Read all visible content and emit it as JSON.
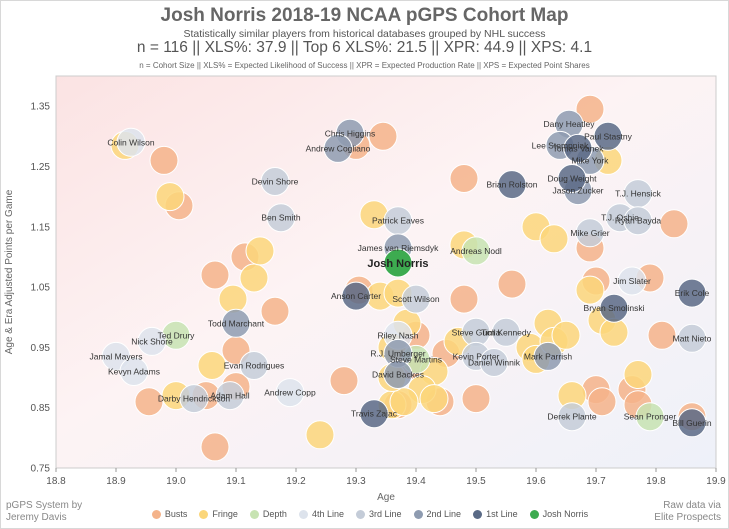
{
  "chart_data": {
    "type": "scatter",
    "title": "Josh Norris 2018-19 NCAA pGPS Cohort Map",
    "subtitle": "Statistically similar players from historical databases grouped by NHL success",
    "stats_line": "n = 116  ||  XLS%: 37.9  ||  Top 6 XLS%: 21.5  ||  XPR: 44.9  ||  XPS: 4.1",
    "definitions": "n = Cohort Size || XLS% = Expected Likelihood of Success || XPR = Expected Production Rate || XPS = Expected Point Shares",
    "xlabel": "Age",
    "ylabel": "Age & Era Adjusted Points per Game",
    "xlim": [
      18.8,
      19.9
    ],
    "ylim": [
      0.75,
      1.4
    ],
    "xticks": [
      "18.8",
      "18.9",
      "19.0",
      "19.1",
      "19.2",
      "19.3",
      "19.4",
      "19.5",
      "19.6",
      "19.7",
      "19.8",
      "19.9"
    ],
    "yticks": [
      "0.75",
      "0.85",
      "0.95",
      "1.05",
      "1.15",
      "1.25",
      "1.35"
    ],
    "grid": false,
    "legend_position": "bottom",
    "categories": [
      {
        "name": "Busts",
        "color": "#f4b38a"
      },
      {
        "name": "Fringe",
        "color": "#fbd67a"
      },
      {
        "name": "Depth",
        "color": "#c7e3b2"
      },
      {
        "name": "4th Line",
        "color": "#dde3ec"
      },
      {
        "name": "3rd Line",
        "color": "#c4ccd8"
      },
      {
        "name": "2nd Line",
        "color": "#8e9bb0"
      },
      {
        "name": "1st Line",
        "color": "#5a6a86"
      },
      {
        "name": "Josh Norris",
        "color": "#3dab50"
      }
    ],
    "subject": {
      "name": "Josh Norris",
      "x": 19.37,
      "y": 1.09
    },
    "points": [
      {
        "x": 18.915,
        "y": 1.285,
        "c": 1
      },
      {
        "x": 18.98,
        "y": 1.26,
        "c": 0
      },
      {
        "x": 18.99,
        "y": 1.2,
        "c": 1
      },
      {
        "x": 19.005,
        "y": 1.185,
        "c": 0
      },
      {
        "x": 19.065,
        "y": 1.07,
        "c": 0
      },
      {
        "x": 19.095,
        "y": 1.03,
        "c": 1
      },
      {
        "x": 19.115,
        "y": 1.1,
        "c": 0
      },
      {
        "x": 19.13,
        "y": 1.065,
        "c": 1
      },
      {
        "x": 19.14,
        "y": 1.11,
        "c": 1
      },
      {
        "x": 19.165,
        "y": 1.01,
        "c": 0
      },
      {
        "x": 19.1,
        "y": 0.945,
        "c": 0
      },
      {
        "x": 19.06,
        "y": 0.92,
        "c": 1
      },
      {
        "x": 19.05,
        "y": 0.87,
        "c": 0
      },
      {
        "x": 19.0,
        "y": 0.87,
        "c": 1
      },
      {
        "x": 18.955,
        "y": 0.86,
        "c": 0
      },
      {
        "x": 19.1,
        "y": 0.885,
        "c": 0
      },
      {
        "x": 19.065,
        "y": 0.785,
        "c": 0
      },
      {
        "x": 19.24,
        "y": 0.805,
        "c": 1
      },
      {
        "x": 19.28,
        "y": 0.895,
        "c": 0
      },
      {
        "x": 19.33,
        "y": 1.17,
        "c": 1
      },
      {
        "x": 19.345,
        "y": 1.3,
        "c": 0
      },
      {
        "x": 19.305,
        "y": 1.045,
        "c": 0
      },
      {
        "x": 19.34,
        "y": 1.035,
        "c": 1
      },
      {
        "x": 19.37,
        "y": 1.04,
        "c": 1
      },
      {
        "x": 19.385,
        "y": 0.99,
        "c": 1
      },
      {
        "x": 19.4,
        "y": 0.97,
        "c": 0
      },
      {
        "x": 19.36,
        "y": 0.95,
        "c": 1
      },
      {
        "x": 19.39,
        "y": 0.92,
        "c": 0
      },
      {
        "x": 19.43,
        "y": 0.91,
        "c": 1
      },
      {
        "x": 19.41,
        "y": 0.88,
        "c": 1
      },
      {
        "x": 19.43,
        "y": 0.865,
        "c": 1
      },
      {
        "x": 19.44,
        "y": 0.86,
        "c": 0
      },
      {
        "x": 19.45,
        "y": 0.94,
        "c": 0
      },
      {
        "x": 19.47,
        "y": 0.96,
        "c": 1
      },
      {
        "x": 19.36,
        "y": 0.855,
        "c": 1
      },
      {
        "x": 19.37,
        "y": 0.855,
        "c": 0
      },
      {
        "x": 19.38,
        "y": 0.86,
        "c": 1
      },
      {
        "x": 19.36,
        "y": 0.9,
        "c": 1
      },
      {
        "x": 19.48,
        "y": 1.23,
        "c": 0
      },
      {
        "x": 19.48,
        "y": 1.12,
        "c": 1
      },
      {
        "x": 19.48,
        "y": 1.03,
        "c": 0
      },
      {
        "x": 19.5,
        "y": 0.865,
        "c": 0
      },
      {
        "x": 19.56,
        "y": 1.055,
        "c": 0
      },
      {
        "x": 19.59,
        "y": 0.95,
        "c": 1
      },
      {
        "x": 19.6,
        "y": 0.93,
        "c": 1
      },
      {
        "x": 19.6,
        "y": 1.15,
        "c": 1
      },
      {
        "x": 19.62,
        "y": 0.99,
        "c": 1
      },
      {
        "x": 19.63,
        "y": 1.13,
        "c": 1
      },
      {
        "x": 19.63,
        "y": 0.96,
        "c": 1
      },
      {
        "x": 19.65,
        "y": 0.97,
        "c": 1
      },
      {
        "x": 19.66,
        "y": 0.87,
        "c": 1
      },
      {
        "x": 19.69,
        "y": 1.115,
        "c": 0
      },
      {
        "x": 19.7,
        "y": 1.06,
        "c": 0
      },
      {
        "x": 19.69,
        "y": 1.045,
        "c": 1
      },
      {
        "x": 19.7,
        "y": 0.88,
        "c": 0
      },
      {
        "x": 19.71,
        "y": 0.86,
        "c": 0
      },
      {
        "x": 19.71,
        "y": 0.995,
        "c": 1
      },
      {
        "x": 19.73,
        "y": 0.975,
        "c": 1
      },
      {
        "x": 19.77,
        "y": 0.905,
        "c": 1
      },
      {
        "x": 19.76,
        "y": 0.88,
        "c": 0
      },
      {
        "x": 19.77,
        "y": 0.855,
        "c": 0
      },
      {
        "x": 19.79,
        "y": 1.065,
        "c": 0
      },
      {
        "x": 19.81,
        "y": 0.97,
        "c": 0
      },
      {
        "x": 19.83,
        "y": 1.155,
        "c": 0
      },
      {
        "x": 19.86,
        "y": 0.835,
        "c": 0
      },
      {
        "x": 19.69,
        "y": 1.345,
        "c": 0
      },
      {
        "x": 19.72,
        "y": 1.26,
        "c": 1
      },
      {
        "x": 19.3,
        "y": 1.285,
        "c": 0
      },
      {
        "x": 18.925,
        "y": 1.29,
        "c": 3,
        "label": "Colin Wilson"
      },
      {
        "x": 19.29,
        "y": 1.305,
        "c": 5,
        "label": "Chris Higgins"
      },
      {
        "x": 19.27,
        "y": 1.28,
        "c": 5,
        "label": "Andrew Cogliano"
      },
      {
        "x": 19.165,
        "y": 1.225,
        "c": 4,
        "label": "Devin Shore"
      },
      {
        "x": 19.175,
        "y": 1.165,
        "c": 4,
        "label": "Ben Smith"
      },
      {
        "x": 19.37,
        "y": 1.16,
        "c": 4,
        "label": "Patrick Eaves"
      },
      {
        "x": 19.37,
        "y": 1.115,
        "c": 5,
        "label": "James van Riemsdyk"
      },
      {
        "x": 19.5,
        "y": 1.11,
        "c": 2,
        "label": "Andreas Nodl"
      },
      {
        "x": 19.3,
        "y": 1.035,
        "c": 6,
        "label": "Anson Carter"
      },
      {
        "x": 19.4,
        "y": 1.03,
        "c": 4,
        "label": "Scott Wilson"
      },
      {
        "x": 19.1,
        "y": 0.99,
        "c": 5,
        "label": "Todd Marchant"
      },
      {
        "x": 19.0,
        "y": 0.97,
        "c": 2,
        "label": "Ted Drury"
      },
      {
        "x": 18.96,
        "y": 0.96,
        "c": 3,
        "label": "Nick Shore"
      },
      {
        "x": 18.9,
        "y": 0.935,
        "c": 3,
        "label": "Jamal Mayers"
      },
      {
        "x": 18.93,
        "y": 0.91,
        "c": 3,
        "label": "Kevyn Adams"
      },
      {
        "x": 19.13,
        "y": 0.92,
        "c": 4,
        "label": "Evan Rodrigues"
      },
      {
        "x": 19.09,
        "y": 0.87,
        "c": 4,
        "label": "Adam Hall"
      },
      {
        "x": 19.03,
        "y": 0.865,
        "c": 4,
        "label": "Darby Hendrickson"
      },
      {
        "x": 19.19,
        "y": 0.875,
        "c": 3,
        "label": "Andrew Copp"
      },
      {
        "x": 19.37,
        "y": 0.97,
        "c": 3,
        "label": "Riley Nash"
      },
      {
        "x": 19.37,
        "y": 0.94,
        "c": 5,
        "label": "R.J. Umberger"
      },
      {
        "x": 19.4,
        "y": 0.93,
        "c": 2,
        "label": "Steve Martins"
      },
      {
        "x": 19.37,
        "y": 0.905,
        "c": 5,
        "label": "David Backes"
      },
      {
        "x": 19.33,
        "y": 0.84,
        "c": 6,
        "label": "Travis Zajac"
      },
      {
        "x": 19.5,
        "y": 0.975,
        "c": 4,
        "label": "Steve Guolla"
      },
      {
        "x": 19.55,
        "y": 0.975,
        "c": 4,
        "label": "Tim Kennedy"
      },
      {
        "x": 19.5,
        "y": 0.935,
        "c": 4,
        "label": "Kevin Porter"
      },
      {
        "x": 19.53,
        "y": 0.925,
        "c": 4,
        "label": "Daniel Winnik"
      },
      {
        "x": 19.62,
        "y": 0.935,
        "c": 5,
        "label": "Mark Parrish"
      },
      {
        "x": 19.66,
        "y": 0.835,
        "c": 4,
        "label": "Derek Plante"
      },
      {
        "x": 19.79,
        "y": 0.835,
        "c": 2,
        "label": "Sean Pronger"
      },
      {
        "x": 19.86,
        "y": 0.825,
        "c": 6,
        "label": "Bill Guerin"
      },
      {
        "x": 19.655,
        "y": 1.32,
        "c": 5,
        "label": "Dany Heatley"
      },
      {
        "x": 19.72,
        "y": 1.3,
        "c": 6,
        "label": "Paul Stastny"
      },
      {
        "x": 19.64,
        "y": 1.285,
        "c": 5,
        "label": "Lee Stempniak"
      },
      {
        "x": 19.67,
        "y": 1.28,
        "c": 6,
        "label": "Tomas Vanek"
      },
      {
        "x": 19.69,
        "y": 1.26,
        "c": 5,
        "label": "Mike York"
      },
      {
        "x": 19.66,
        "y": 1.23,
        "c": 6,
        "label": "Doug Weight"
      },
      {
        "x": 19.56,
        "y": 1.22,
        "c": 6,
        "label": "Brian Rolston"
      },
      {
        "x": 19.67,
        "y": 1.21,
        "c": 5,
        "label": "Jason Zucker"
      },
      {
        "x": 19.77,
        "y": 1.205,
        "c": 4,
        "label": "T.J. Hensick"
      },
      {
        "x": 19.74,
        "y": 1.165,
        "c": 4,
        "label": "T.J. Oshie"
      },
      {
        "x": 19.77,
        "y": 1.16,
        "c": 4,
        "label": "Ryan Bayda"
      },
      {
        "x": 19.69,
        "y": 1.14,
        "c": 4,
        "label": "Mike Grier"
      },
      {
        "x": 19.76,
        "y": 1.06,
        "c": 3,
        "label": "Jim Slater"
      },
      {
        "x": 19.86,
        "y": 1.04,
        "c": 6,
        "label": "Erik Cole"
      },
      {
        "x": 19.73,
        "y": 1.015,
        "c": 6,
        "label": "Bryan Smolinski"
      },
      {
        "x": 19.86,
        "y": 0.965,
        "c": 4,
        "label": "Matt Nieto"
      }
    ]
  },
  "credits": {
    "left": [
      "pGPS System by",
      "Jeremy Davis"
    ],
    "right": [
      "Raw data via",
      "Elite Prospects"
    ]
  }
}
